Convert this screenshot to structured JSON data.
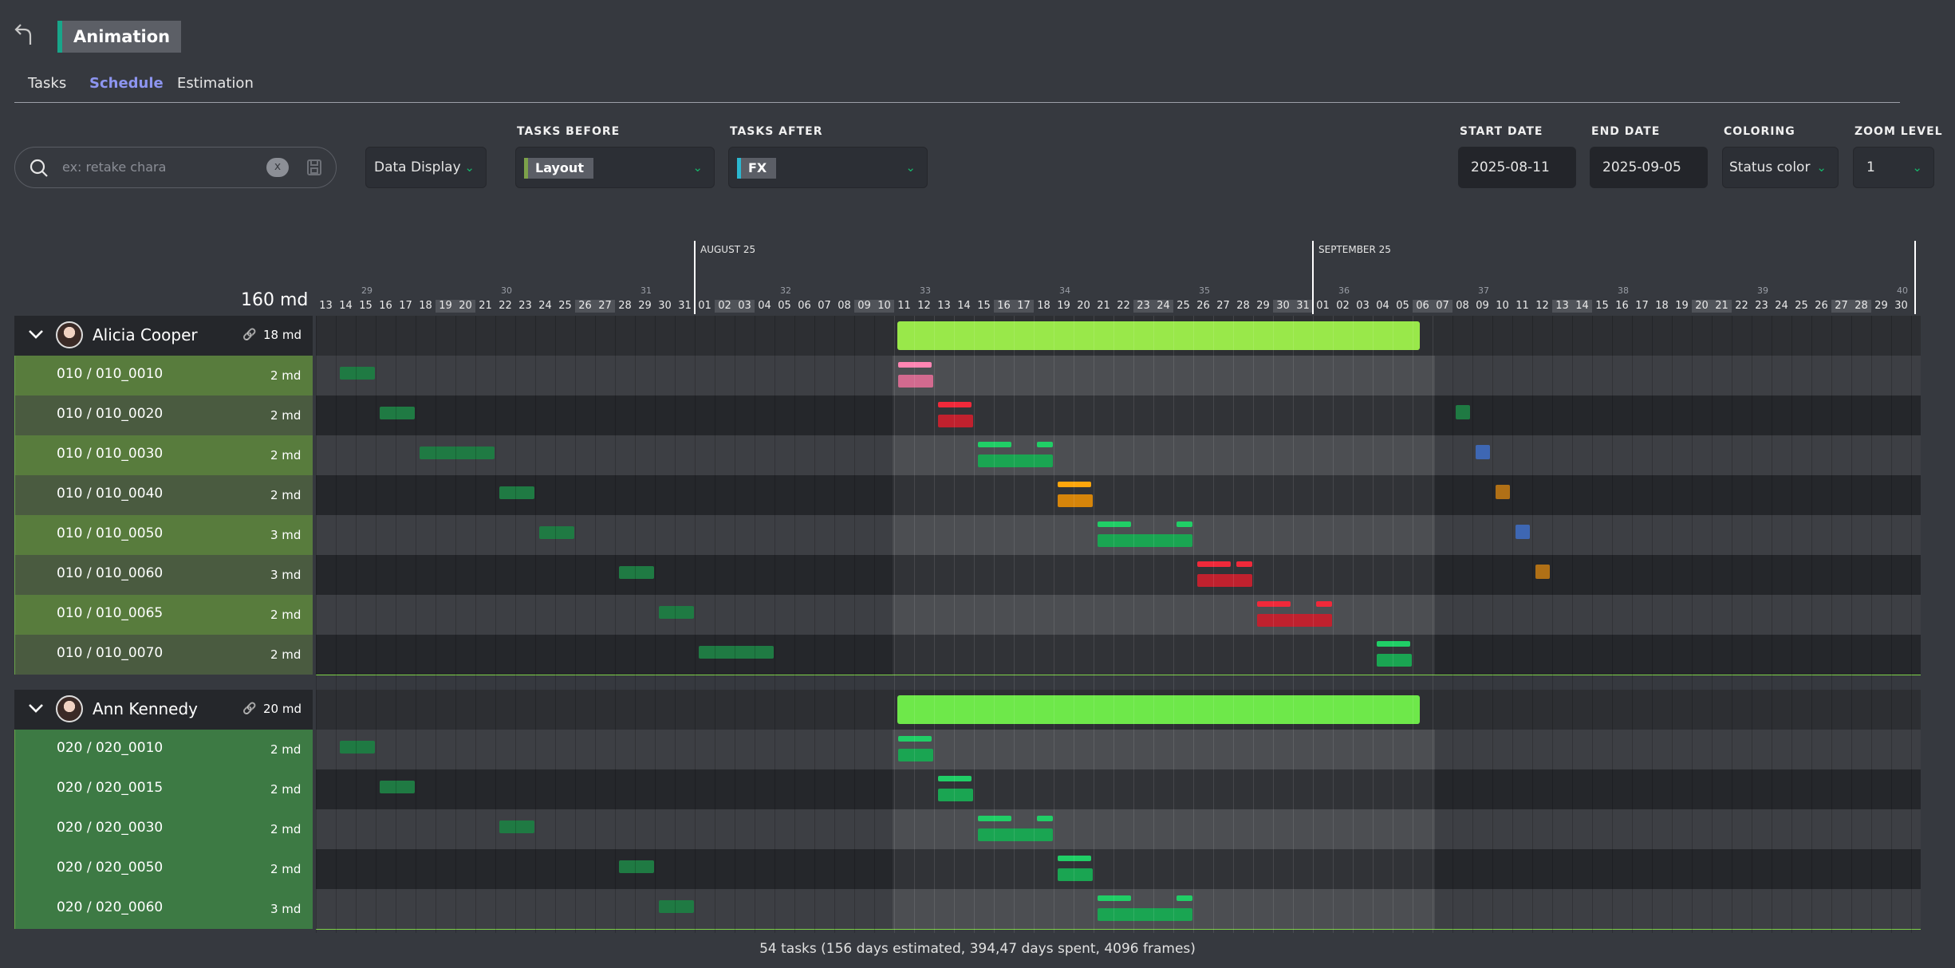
{
  "header": {
    "title": "Animation",
    "back_icon": "back-arrow-icon"
  },
  "tabs": [
    "Tasks",
    "Schedule",
    "Estimation"
  ],
  "active_tab": "Schedule",
  "filters": {
    "search_placeholder": "ex: retake chara",
    "search_clear": "x",
    "data_display": "Data Display",
    "tasks_before_label": "TASKS BEFORE",
    "tasks_before_value": "Layout",
    "tasks_before_color": "#7ca14a",
    "tasks_after_label": "TASKS AFTER",
    "tasks_after_value": "FX",
    "tasks_after_color": "#2bb7d0",
    "start_date_label": "START DATE",
    "start_date": "2025-08-11",
    "end_date_label": "END DATE",
    "end_date": "2025-09-05",
    "coloring_label": "COLORING",
    "coloring": "Status color",
    "zoom_label": "ZOOM LEVEL",
    "zoom": "1"
  },
  "timeline": {
    "total": "160 md",
    "months": [
      {
        "label": "AUGUST 25",
        "day_index": 19
      },
      {
        "label": "SEPTEMBER 25",
        "day_index": 50
      }
    ],
    "weeks": [
      {
        "label": "29",
        "day_index": 1
      },
      {
        "label": "30",
        "day_index": 8
      },
      {
        "label": "31",
        "day_index": 15
      },
      {
        "label": "32",
        "day_index": 22
      },
      {
        "label": "33",
        "day_index": 29
      },
      {
        "label": "34",
        "day_index": 36
      },
      {
        "label": "35",
        "day_index": 43
      },
      {
        "label": "36",
        "day_index": 50
      },
      {
        "label": "37",
        "day_index": 57
      },
      {
        "label": "38",
        "day_index": 64
      },
      {
        "label": "39",
        "day_index": 71
      },
      {
        "label": "40",
        "day_index": 78
      }
    ],
    "days": [
      "13",
      "14",
      "15",
      "16",
      "17",
      "18",
      "19",
      "20",
      "21",
      "22",
      "23",
      "24",
      "25",
      "26",
      "27",
      "28",
      "29",
      "30",
      "31",
      "01",
      "02",
      "03",
      "04",
      "05",
      "06",
      "07",
      "08",
      "09",
      "10",
      "11",
      "12",
      "13",
      "14",
      "15",
      "16",
      "17",
      "18",
      "19",
      "20",
      "21",
      "22",
      "23",
      "24",
      "25",
      "26",
      "27",
      "28",
      "29",
      "30",
      "31",
      "01",
      "02",
      "03",
      "04",
      "05",
      "06",
      "07",
      "08",
      "09",
      "10",
      "11",
      "12",
      "13",
      "14",
      "15",
      "16",
      "17",
      "18",
      "19",
      "20",
      "21",
      "22",
      "23",
      "24",
      "25",
      "26",
      "27",
      "28",
      "29",
      "30"
    ],
    "weekend_day_indices": [
      6,
      7,
      13,
      14,
      20,
      21,
      27,
      28,
      34,
      35,
      41,
      42,
      48,
      49,
      55,
      56,
      62,
      63,
      69,
      70,
      76,
      77
    ],
    "range_start_index": 29,
    "range_end_index": 55,
    "today_day_index": 80
  },
  "groups": [
    {
      "person": "Alicia Cooper",
      "total": "18 md",
      "summary_bar": {
        "start": "2025-08-11",
        "end": "2025-09-05",
        "color": "#99e84a"
      },
      "row_color": "#587c3d",
      "alt_row_color": "#4a5b40",
      "shots": [
        {
          "name": "010 / 010_0010",
          "duration": "2 md",
          "before": {
            "start": 1,
            "days": 2
          },
          "task": {
            "start": 29,
            "days": 2,
            "color": "#d26a8f"
          },
          "after": null
        },
        {
          "name": "010 / 010_0020",
          "duration": "2 md",
          "before": {
            "start": 3,
            "days": 2
          },
          "task": {
            "start": 31,
            "days": 2,
            "color": "#c0212e"
          },
          "after": {
            "start": 57,
            "days": 1,
            "color": "#1f7a43"
          }
        },
        {
          "name": "010 / 010_0030",
          "duration": "2 md",
          "before": {
            "start": 5,
            "days": 4
          },
          "task": {
            "start": 33,
            "days": 4,
            "color": "#1aa552"
          },
          "after": {
            "start": 58,
            "days": 1,
            "color": "#3e67b3"
          }
        },
        {
          "name": "010 / 010_0040",
          "duration": "2 md",
          "before": {
            "start": 9,
            "days": 2
          },
          "task": {
            "start": 37,
            "days": 2,
            "color": "#d6850a"
          },
          "after": {
            "start": 59,
            "days": 1,
            "color": "#b07016"
          }
        },
        {
          "name": "010 / 010_0050",
          "duration": "3 md",
          "before": {
            "start": 11,
            "days": 2
          },
          "task": {
            "start": 39,
            "days": 5,
            "color": "#1aa552"
          },
          "after": {
            "start": 60,
            "days": 1,
            "color": "#3e67b3"
          }
        },
        {
          "name": "010 / 010_0060",
          "duration": "3 md",
          "before": {
            "start": 15,
            "days": 2
          },
          "task": {
            "start": 44,
            "days": 3,
            "color": "#c0212e"
          },
          "after": {
            "start": 61,
            "days": 1,
            "color": "#b07016"
          }
        },
        {
          "name": "010 / 010_0065",
          "duration": "2 md",
          "before": {
            "start": 17,
            "days": 2
          },
          "task": {
            "start": 47,
            "days": 4,
            "color": "#c0212e"
          },
          "after": null
        },
        {
          "name": "010 / 010_0070",
          "duration": "2 md",
          "before": {
            "start": 19,
            "days": 4
          },
          "task": {
            "start": 53,
            "days": 2,
            "color": "#1aa552"
          },
          "after": null
        }
      ]
    },
    {
      "person": "Ann Kennedy",
      "total": "20 md",
      "summary_bar": {
        "start": "2025-08-11",
        "end": "2025-09-05",
        "color": "#6ee84a"
      },
      "row_color": "#3d7a44",
      "alt_row_color": "#3d7a44",
      "shots": [
        {
          "name": "020 / 020_0010",
          "duration": "2 md",
          "before": {
            "start": 1,
            "days": 2
          },
          "task": {
            "start": 29,
            "days": 2,
            "color": "#1aa552"
          },
          "after": null
        },
        {
          "name": "020 / 020_0015",
          "duration": "2 md",
          "before": {
            "start": 3,
            "days": 2
          },
          "task": {
            "start": 31,
            "days": 2,
            "color": "#1aa552"
          },
          "after": null
        },
        {
          "name": "020 / 020_0030",
          "duration": "2 md",
          "before": {
            "start": 9,
            "days": 2
          },
          "task": {
            "start": 33,
            "days": 4,
            "color": "#1aa552"
          },
          "after": null
        },
        {
          "name": "020 / 020_0050",
          "duration": "2 md",
          "before": {
            "start": 15,
            "days": 2
          },
          "task": {
            "start": 37,
            "days": 2,
            "color": "#1aa552"
          },
          "after": null
        },
        {
          "name": "020 / 020_0060",
          "duration": "3 md",
          "before": {
            "start": 17,
            "days": 2
          },
          "task": {
            "start": 39,
            "days": 5,
            "color": "#1aa552"
          },
          "after": null
        }
      ]
    }
  ],
  "footer": "54 tasks (156 days estimated, 394,47 days spent, 4096 frames)"
}
